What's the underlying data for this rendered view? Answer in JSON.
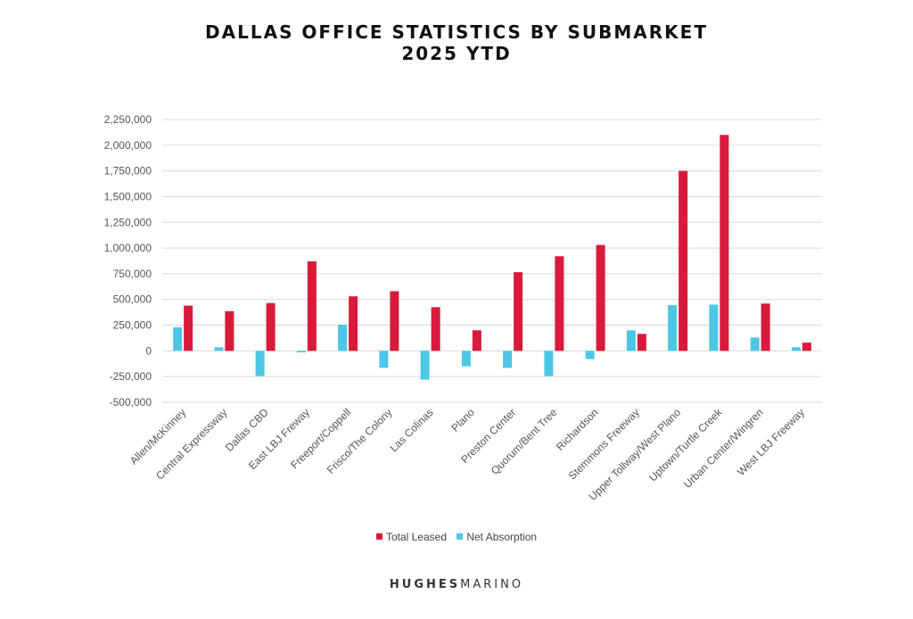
{
  "title_line_1": "DALLAS OFFICE STATISTICS BY SUBMARKET",
  "title_line_2": "2025 YTD",
  "brand": {
    "bold": "HUGHES",
    "light": "MARINO"
  },
  "colors": {
    "total_leased": "#d91a3a",
    "net_absorption": "#4dc7e6",
    "grid": "#d9d9d9",
    "tick_text": "#555555"
  },
  "chart_data": {
    "type": "bar",
    "title": "DALLAS OFFICE STATISTICS BY SUBMARKET 2025 YTD",
    "categories": [
      "Allen/McKinney",
      "Central Expressway",
      "Dallas CBD",
      "East LBJ Freway",
      "Freeport/Coppell",
      "Frisco/The Colony",
      "Las Colinas",
      "Plano",
      "Preston Center",
      "Quorum/Bent Tree",
      "Richardson",
      "Stemmons Freeway",
      "Upper Tollway/West Plano",
      "Uptown/Turtle Creek",
      "Urban Center/Wingren",
      "West LBJ Freeway"
    ],
    "series": [
      {
        "name": "Net Absorption",
        "values": [
          230000,
          35000,
          -245000,
          -15000,
          255000,
          -165000,
          -280000,
          -150000,
          -165000,
          -245000,
          -80000,
          200000,
          445000,
          450000,
          130000,
          35000
        ]
      },
      {
        "name": "Total Leased",
        "values": [
          440000,
          385000,
          465000,
          870000,
          530000,
          580000,
          425000,
          200000,
          765000,
          920000,
          1030000,
          165000,
          1750000,
          2100000,
          460000,
          80000
        ]
      }
    ],
    "ylim": [
      -500000,
      2250000
    ],
    "yticks": [
      "2,250,000",
      "2,000,000",
      "1,750,000",
      "1,500,000",
      "1,250,000",
      "1,000,000",
      "750,000",
      "500,000",
      "250,000",
      "0",
      "-250,000",
      "-500,000"
    ],
    "ytick_values": [
      2250000,
      2000000,
      1750000,
      1500000,
      1250000,
      1000000,
      750000,
      500000,
      250000,
      0,
      -250000,
      -500000
    ],
    "legend": [
      "Total Leased",
      "Net Absorption"
    ],
    "legend_position": "bottom",
    "grid": true,
    "xlabel": "",
    "ylabel": ""
  }
}
